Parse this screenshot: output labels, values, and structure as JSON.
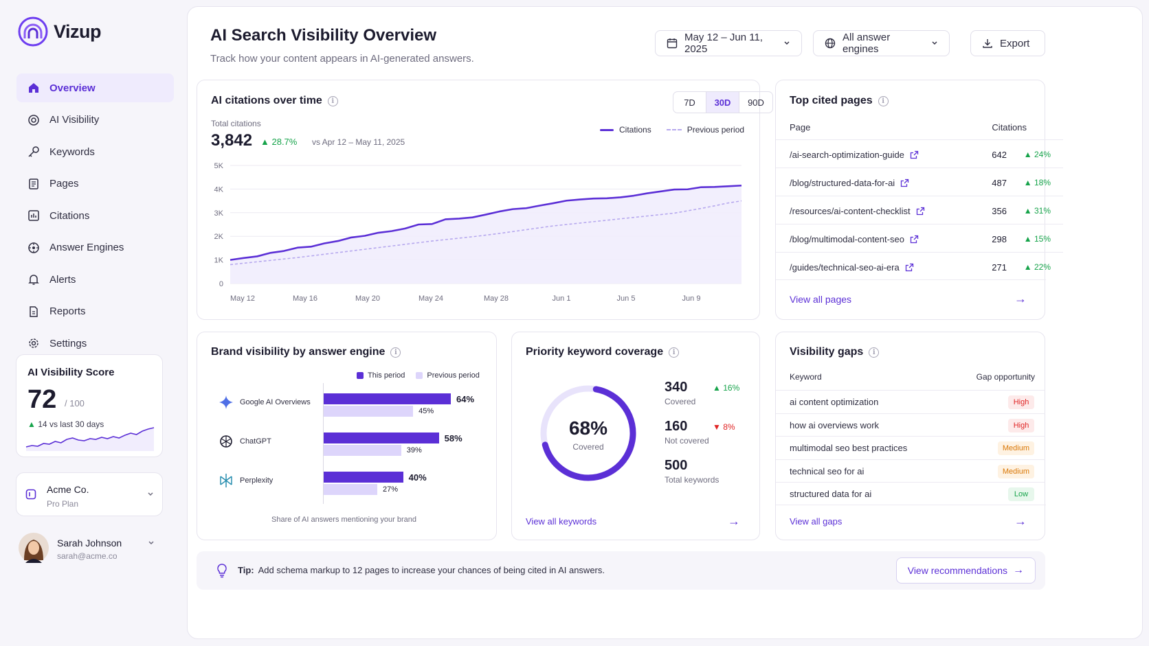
{
  "app": {
    "name": "Vizup"
  },
  "sidebar": {
    "items": [
      {
        "label": "Overview",
        "icon": "home-icon"
      },
      {
        "label": "AI Visibility",
        "icon": "target-icon"
      },
      {
        "label": "Keywords",
        "icon": "key-icon"
      },
      {
        "label": "Pages",
        "icon": "page-icon"
      },
      {
        "label": "Citations",
        "icon": "citation-icon"
      },
      {
        "label": "Answer Engines",
        "icon": "engine-icon"
      },
      {
        "label": "Alerts",
        "icon": "bell-icon"
      },
      {
        "label": "Reports",
        "icon": "report-icon"
      },
      {
        "label": "Settings",
        "icon": "gear-icon"
      }
    ]
  },
  "score": {
    "title": "AI Visibility Score",
    "value": "72",
    "denominator": "/ 100",
    "delta": "14",
    "delta_text": "vs last 30 days",
    "sparkline": [
      18,
      20,
      19,
      23,
      22,
      26,
      24,
      29,
      31,
      28,
      27,
      30,
      29,
      32,
      30,
      33,
      31,
      35,
      38,
      36,
      41,
      44,
      46
    ]
  },
  "account": {
    "name": "Acme Co.",
    "plan": "Pro Plan"
  },
  "user": {
    "name": "Sarah Johnson",
    "email": "sarah@acme.co"
  },
  "header": {
    "title": "AI Search Visibility Overview",
    "subtitle": "Track how your content appears in AI-generated answers.",
    "date_range": "May 12 – Jun 11, 2025",
    "engine_filter": "All answer engines",
    "export_label": "Export"
  },
  "citations": {
    "title": "AI citations over time",
    "ranges": [
      "7D",
      "30D",
      "90D"
    ],
    "active_range": "30D",
    "total_label": "Total citations",
    "total": "3,842",
    "delta": "28.7%",
    "compare": "vs Apr 12 – May 11, 2025",
    "legend_current": "Citations",
    "legend_previous": "Previous period"
  },
  "chart_data": {
    "type": "line",
    "y_ticks": [
      "5K",
      "4K",
      "3K",
      "2K",
      "1K",
      "0"
    ],
    "ylim": [
      0,
      5000
    ],
    "x_labels": [
      "May 12",
      "May 16",
      "May 20",
      "May 24",
      "May 28",
      "Jun 1",
      "Jun 5",
      "Jun 9"
    ],
    "series": [
      {
        "name": "Citations",
        "values": [
          1000,
          1080,
          1150,
          1300,
          1380,
          1520,
          1560,
          1700,
          1800,
          1950,
          2020,
          2150,
          2220,
          2330,
          2500,
          2520,
          2720,
          2750,
          2800,
          2920,
          3050,
          3150,
          3190,
          3300,
          3400,
          3510,
          3560,
          3600,
          3610,
          3650,
          3720,
          3820,
          3900,
          3980,
          3990,
          4080,
          4090,
          4120,
          4150
        ]
      },
      {
        "name": "Previous period",
        "values": [
          800,
          860,
          920,
          980,
          1040,
          1100,
          1170,
          1240,
          1310,
          1380,
          1450,
          1520,
          1590,
          1660,
          1730,
          1800,
          1860,
          1920,
          1980,
          2050,
          2120,
          2200,
          2280,
          2360,
          2440,
          2500,
          2560,
          2620,
          2680,
          2740,
          2800,
          2860,
          2920,
          2980,
          3080,
          3180,
          3290,
          3410,
          3500
        ]
      }
    ]
  },
  "top_pages": {
    "title": "Top cited pages",
    "col_page": "Page",
    "col_citations": "Citations",
    "rows": [
      {
        "page": "/ai-search-optimization-guide",
        "citations": "642",
        "delta": "24%"
      },
      {
        "page": "/blog/structured-data-for-ai",
        "citations": "487",
        "delta": "18%"
      },
      {
        "page": "/resources/ai-content-checklist",
        "citations": "356",
        "delta": "31%"
      },
      {
        "page": "/blog/multimodal-content-seo",
        "citations": "298",
        "delta": "15%"
      },
      {
        "page": "/guides/technical-seo-ai-era",
        "citations": "271",
        "delta": "22%"
      }
    ],
    "view_all": "View all pages"
  },
  "brand": {
    "title": "Brand visibility by answer engine",
    "legend_this": "This period",
    "legend_prev": "Previous period",
    "footer": "Share of AI answers mentioning your brand",
    "engines": [
      {
        "name": "Google AI Overviews",
        "icon": "sparkle-icon",
        "this": 64,
        "prev": 45,
        "this_label": "64%",
        "prev_label": "45%"
      },
      {
        "name": "ChatGPT",
        "icon": "chatgpt-icon",
        "this": 58,
        "prev": 39,
        "this_label": "58%",
        "prev_label": "39%"
      },
      {
        "name": "Perplexity",
        "icon": "perplexity-icon",
        "this": 40,
        "prev": 27,
        "this_label": "40%",
        "prev_label": "27%"
      }
    ]
  },
  "keywords": {
    "title": "Priority keyword coverage",
    "percent": "68%",
    "percent_value": 0.68,
    "percent_label": "Covered",
    "covered": "340",
    "covered_label": "Covered",
    "covered_delta": "16%",
    "not_covered": "160",
    "not_covered_label": "Not covered",
    "not_covered_delta": "8%",
    "total": "500",
    "total_label": "Total keywords",
    "view_all": "View all keywords"
  },
  "gaps": {
    "title": "Visibility gaps",
    "col_keyword": "Keyword",
    "col_gap": "Gap opportunity",
    "rows": [
      {
        "keyword": "ai content optimization",
        "level": "High"
      },
      {
        "keyword": "how ai overviews work",
        "level": "High"
      },
      {
        "keyword": "multimodal seo best practices",
        "level": "Medium"
      },
      {
        "keyword": "technical seo for ai",
        "level": "Medium"
      },
      {
        "keyword": "structured data for ai",
        "level": "Low"
      }
    ],
    "view_all": "View all gaps"
  },
  "tip": {
    "label": "Tip:",
    "text": "Add schema markup to 12 pages to increase your chances of being cited in AI answers.",
    "button": "View recommendations"
  }
}
